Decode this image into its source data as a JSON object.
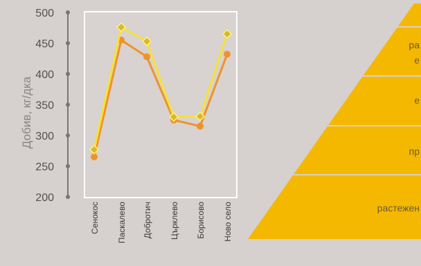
{
  "chart_data": {
    "type": "line",
    "ylabel": "Добив, кг/дка",
    "ylim": [
      200,
      500
    ],
    "yticks": [
      200,
      250,
      300,
      350,
      400,
      450,
      500
    ],
    "categories": [
      "Сенокос",
      "Паскалево",
      "Добротич",
      "Църклево",
      "Борисово",
      "Ново село"
    ],
    "series": [
      {
        "values": [
          265,
          455,
          428,
          325,
          315,
          432
        ],
        "color": "#f0922b",
        "marker": "circle"
      },
      {
        "values": [
          277,
          476,
          453,
          330,
          331,
          465
        ],
        "color": "#f6e23a",
        "marker": "diamond"
      }
    ],
    "grid": false
  },
  "pyramid": {
    "color": "#f5b800",
    "levels": [
      {
        "text": ""
      },
      {
        "lines": [
          "ра",
          "е"
        ]
      },
      {
        "lines": [
          "е"
        ]
      },
      {
        "lines": [
          "пр"
        ]
      },
      {
        "lines": [
          "растежен"
        ]
      }
    ]
  }
}
